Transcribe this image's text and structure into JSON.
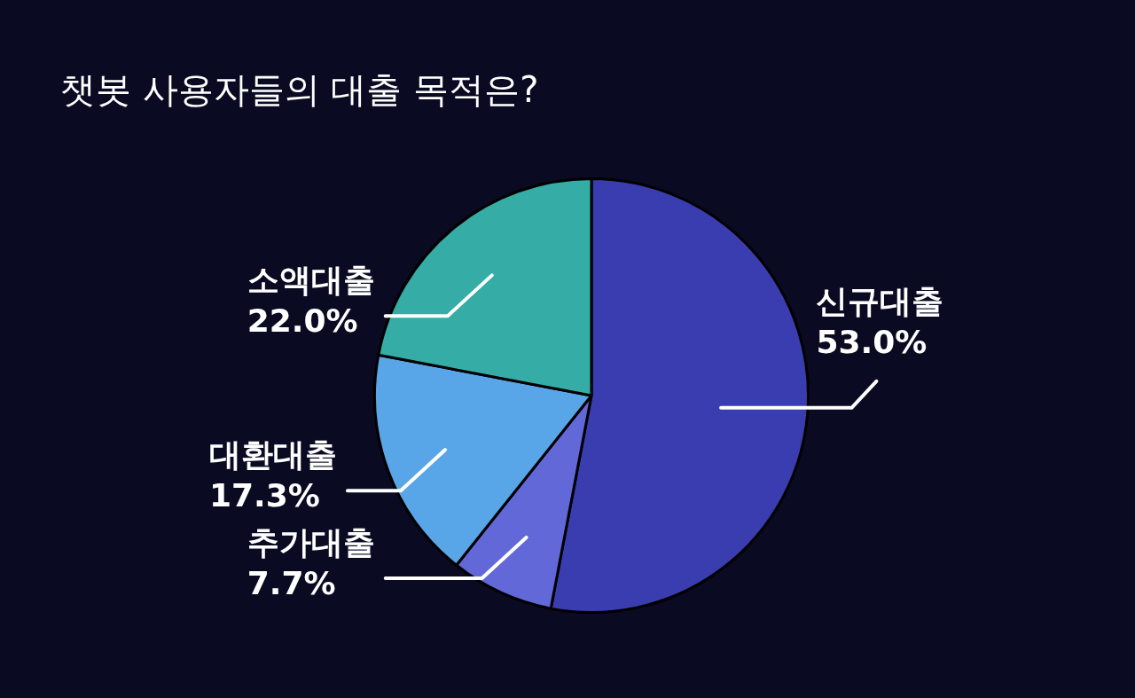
{
  "chart_data": {
    "type": "pie",
    "title": "챗봇 사용자들의 대출 목적은?",
    "categories": [
      "신규대출",
      "추가대출",
      "대환대출",
      "소액대출"
    ],
    "values": [
      53.0,
      7.7,
      17.3,
      22.0
    ],
    "value_labels": [
      "53.0%",
      "7.7%",
      "17.3%",
      "22.0%"
    ],
    "colors": [
      "#3a3db0",
      "#6268d8",
      "#58a6e8",
      "#35aca6"
    ],
    "legend": false
  }
}
